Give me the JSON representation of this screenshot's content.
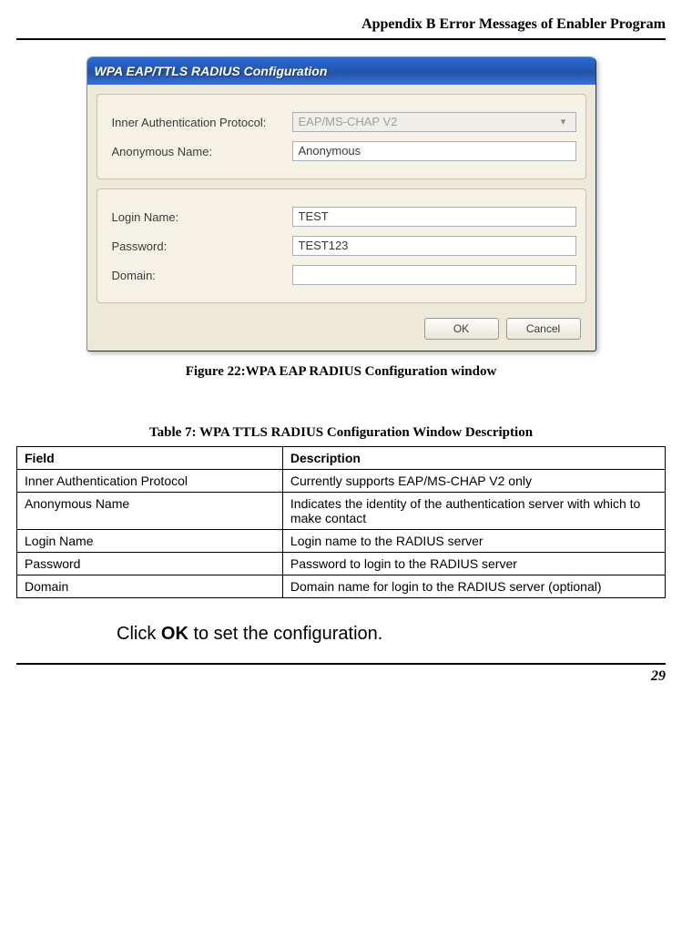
{
  "page": {
    "header": "Appendix B Error Messages of Enabler Program",
    "page_number": "29"
  },
  "dialog": {
    "title": "WPA EAP/TTLS RADIUS Configuration",
    "group1": {
      "rows": [
        {
          "label": "Inner Authentication Protocol:",
          "value": "EAP/MS-CHAP V2",
          "type": "select_disabled"
        },
        {
          "label": "Anonymous Name:",
          "value": "Anonymous",
          "type": "text"
        }
      ]
    },
    "group2": {
      "rows": [
        {
          "label": "Login Name:",
          "value": "TEST",
          "type": "text"
        },
        {
          "label": "Password:",
          "value": "TEST123",
          "type": "text"
        },
        {
          "label": "Domain:",
          "value": "",
          "type": "text"
        }
      ]
    },
    "buttons": {
      "ok": "OK",
      "cancel": "Cancel"
    }
  },
  "figure_caption": "Figure 22:WPA EAP RADIUS Configuration window",
  "table_caption": "Table 7: WPA TTLS RADIUS Configuration Window Description",
  "table": {
    "header": {
      "field": "Field",
      "desc": "Description"
    },
    "rows": [
      {
        "field": "Inner Authentication Protocol",
        "desc": "Currently supports EAP/MS-CHAP V2 only"
      },
      {
        "field": "Anonymous Name",
        "desc": "Indicates the identity of the authentication server with which to make contact"
      },
      {
        "field": "Login Name",
        "desc": "Login name to the RADIUS server"
      },
      {
        "field": "Password",
        "desc": "Password to login to the RADIUS server"
      },
      {
        "field": "Domain",
        "desc": "Domain name for login to the RADIUS server (optional)"
      }
    ]
  },
  "instruction": {
    "pre": "Click ",
    "bold": "OK",
    "post": " to set the configuration."
  }
}
